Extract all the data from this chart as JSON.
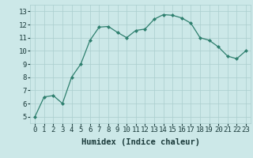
{
  "x": [
    0,
    1,
    2,
    3,
    4,
    5,
    6,
    7,
    8,
    9,
    10,
    11,
    12,
    13,
    14,
    15,
    16,
    17,
    18,
    19,
    20,
    21,
    22,
    23
  ],
  "y": [
    5.0,
    6.5,
    6.6,
    6.0,
    8.0,
    9.0,
    10.8,
    11.8,
    11.85,
    11.4,
    11.0,
    11.55,
    11.65,
    12.4,
    12.75,
    12.7,
    12.5,
    12.1,
    11.0,
    10.8,
    10.3,
    9.6,
    9.4,
    10.0
  ],
  "line_color": "#2e7f6e",
  "marker_color": "#2e7f6e",
  "bg_color": "#cce8e8",
  "grid_color": "#aacece",
  "xlabel": "Humidex (Indice chaleur)",
  "xlim": [
    -0.5,
    23.5
  ],
  "ylim": [
    4.5,
    13.5
  ],
  "yticks": [
    5,
    6,
    7,
    8,
    9,
    10,
    11,
    12,
    13
  ],
  "xticks": [
    0,
    1,
    2,
    3,
    4,
    5,
    6,
    7,
    8,
    9,
    10,
    11,
    12,
    13,
    14,
    15,
    16,
    17,
    18,
    19,
    20,
    21,
    22,
    23
  ],
  "xlabel_fontsize": 7.5,
  "tick_fontsize": 6.5,
  "tick_color": "#1a3a3a",
  "label_color": "#1a3a3a"
}
